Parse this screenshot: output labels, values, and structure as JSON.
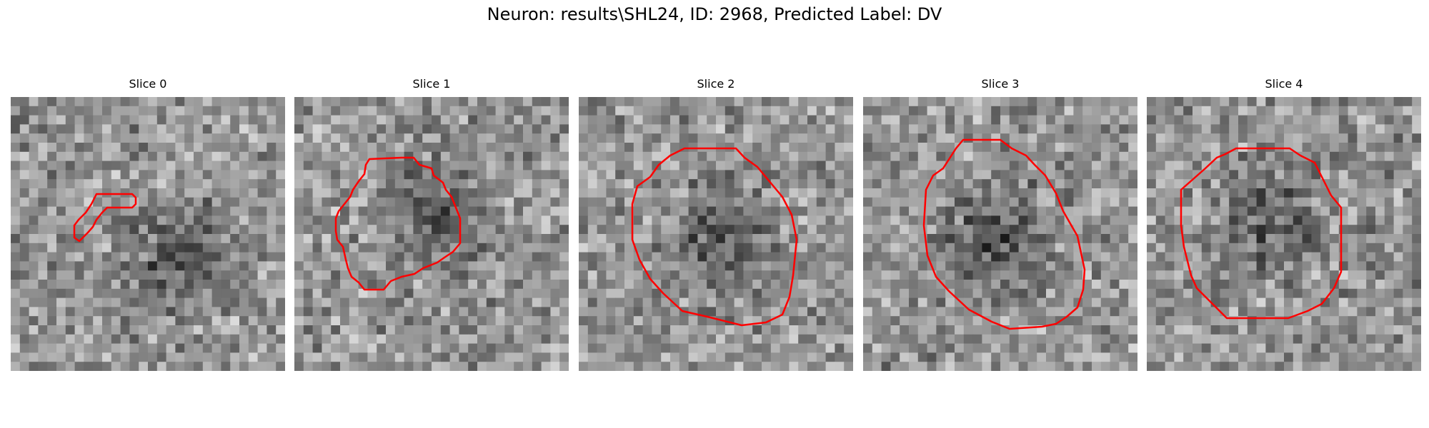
{
  "figure": {
    "title": "Neuron: results\\SHL24, ID: 2968, Predicted Label: DV"
  },
  "colors": {
    "contour": "#ff0000",
    "background": "#ffffff"
  },
  "panels": [
    {
      "title": "Slice 0",
      "image": "grayscale-microscopy-patch",
      "contour": "red-outline",
      "seed": 11
    },
    {
      "title": "Slice 1",
      "image": "grayscale-microscopy-patch",
      "contour": "red-outline",
      "seed": 23
    },
    {
      "title": "Slice 2",
      "image": "grayscale-microscopy-patch",
      "contour": "red-outline",
      "seed": 37
    },
    {
      "title": "Slice 3",
      "image": "grayscale-microscopy-patch",
      "contour": "red-outline",
      "seed": 51
    },
    {
      "title": "Slice 4",
      "image": "grayscale-microscopy-patch",
      "contour": "red-outline",
      "seed": 67
    }
  ]
}
